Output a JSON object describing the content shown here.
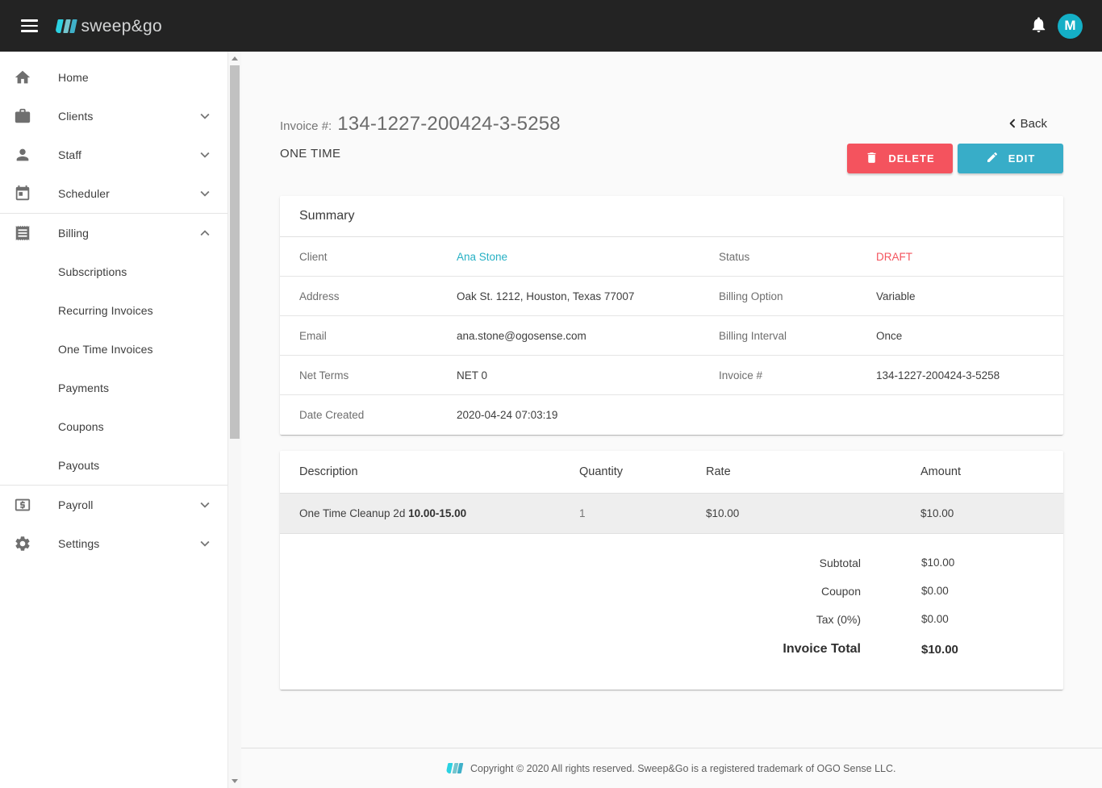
{
  "topbar": {
    "logo_text": "sweep&go",
    "avatar_initial": "M"
  },
  "sidebar": {
    "items": [
      {
        "type": "item",
        "icon": "home",
        "label": "Home",
        "expandable": false
      },
      {
        "type": "item",
        "icon": "briefcase",
        "label": "Clients",
        "expandable": true,
        "state": "collapsed"
      },
      {
        "type": "item",
        "icon": "person",
        "label": "Staff",
        "expandable": true,
        "state": "collapsed"
      },
      {
        "type": "item",
        "icon": "calendar",
        "label": "Scheduler",
        "expandable": true,
        "state": "collapsed"
      },
      {
        "type": "divider"
      },
      {
        "type": "item",
        "icon": "receipt",
        "label": "Billing",
        "expandable": true,
        "state": "expanded"
      },
      {
        "type": "sub",
        "label": "Subscriptions"
      },
      {
        "type": "sub",
        "label": "Recurring Invoices"
      },
      {
        "type": "sub",
        "label": "One Time Invoices"
      },
      {
        "type": "sub",
        "label": "Payments"
      },
      {
        "type": "sub",
        "label": "Coupons"
      },
      {
        "type": "sub",
        "label": "Payouts"
      },
      {
        "type": "divider"
      },
      {
        "type": "item",
        "icon": "dollar",
        "label": "Payroll",
        "expandable": true,
        "state": "collapsed"
      },
      {
        "type": "item",
        "icon": "gear",
        "label": "Settings",
        "expandable": true,
        "state": "collapsed"
      }
    ]
  },
  "header": {
    "invoice_label": "Invoice #:",
    "invoice_number": "134-1227-200424-3-5258",
    "subtitle": "ONE TIME",
    "back_label": "Back",
    "delete_label": "DELETE",
    "edit_label": "EDIT"
  },
  "summary": {
    "title": "Summary",
    "rows": [
      {
        "label1": "Client",
        "value1": "Ana Stone",
        "value1_style": "link",
        "label2": "Status",
        "value2": "DRAFT",
        "value2_style": "status-draft"
      },
      {
        "label1": "Address",
        "value1": "Oak St. 1212, Houston, Texas 77007",
        "value1_style": "",
        "label2": "Billing Option",
        "value2": "Variable",
        "value2_style": ""
      },
      {
        "label1": "Email",
        "value1": "ana.stone@ogosense.com",
        "value1_style": "",
        "label2": "Billing Interval",
        "value2": "Once",
        "value2_style": ""
      },
      {
        "label1": "Net Terms",
        "value1": "NET 0",
        "value1_style": "",
        "label2": "Invoice #",
        "value2": "134-1227-200424-3-5258",
        "value2_style": ""
      },
      {
        "label1": "Date Created",
        "value1": "2020-04-24 07:03:19",
        "value1_style": "",
        "label2": "",
        "value2": "",
        "value2_style": ""
      }
    ]
  },
  "items_table": {
    "columns": [
      "Description",
      "Quantity",
      "Rate",
      "Amount"
    ],
    "rows": [
      {
        "description": "One Time Cleanup 2d",
        "description_bold": "10.00-15.00",
        "quantity": "1",
        "rate": "$10.00",
        "amount": "$10.00"
      }
    ],
    "totals": [
      {
        "label": "Subtotal",
        "value": "$10.00"
      },
      {
        "label": "Coupon",
        "value": "$0.00"
      },
      {
        "label": "Tax (0%)",
        "value": "$0.00"
      }
    ],
    "grand_total": {
      "label": "Invoice Total",
      "value": "$10.00"
    }
  },
  "footer": {
    "copyright": "Copyright © 2020 All rights reserved. Sweep&Go is a registered trademark of OGO Sense LLC."
  },
  "colors": {
    "topbar_bg": "#232323",
    "accent_teal": "#38adc8",
    "accent_cyan": "#2bd2e2",
    "danger_red": "#f4535e",
    "link_teal": "#26b0c4",
    "main_bg": "#fafafa",
    "row_highlight": "#eeeeee"
  }
}
